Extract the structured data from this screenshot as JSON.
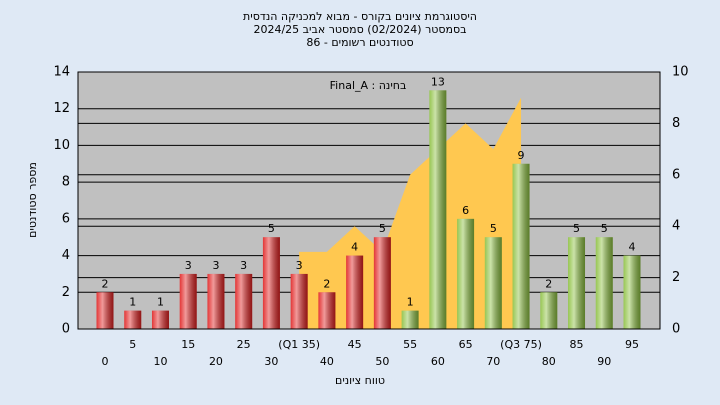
{
  "chart_data": {
    "type": "bar",
    "title": "היסטוגרמת ציונים בקורס - מבוא למכניקה הנדסית",
    "subtitle": "בסמסטר (02/2024) סמסטר אביב 2024/25",
    "subtitle2": "סטודנטים רשומים - 86",
    "annotation": "Final_A : בחינה",
    "ylabel": "מספר סטודנטים",
    "xlabel": "טווח ציונים",
    "categories": [
      "0",
      "5",
      "10",
      "15",
      "20",
      "25",
      "30",
      "(Q1 35)",
      "40",
      "45",
      "50",
      "55",
      "60",
      "65",
      "70",
      "(Q3 75)",
      "80",
      "85",
      "90",
      "95"
    ],
    "values": [
      2,
      1,
      1,
      3,
      3,
      3,
      5,
      3,
      2,
      4,
      5,
      1,
      13,
      6,
      5,
      9,
      2,
      5,
      5,
      4
    ],
    "colors": [
      "#e02020",
      "#e02020",
      "#e02020",
      "#e02020",
      "#e02020",
      "#e02020",
      "#e02020",
      "#e02020",
      "#e02020",
      "#e02020",
      "#e02020",
      "#8cc040",
      "#8cc040",
      "#8cc040",
      "#8cc040",
      "#8cc040",
      "#8cc040",
      "#8cc040",
      "#8cc040",
      "#8cc040"
    ],
    "area": {
      "color": "#ffc850",
      "axis": "y2",
      "values": [
        null,
        null,
        null,
        null,
        null,
        null,
        null,
        3,
        3,
        4,
        3,
        6,
        7,
        8,
        7,
        9,
        null,
        null,
        null,
        null
      ]
    },
    "ylim": [
      0,
      14
    ],
    "yticks": [
      0,
      2,
      4,
      6,
      8,
      10,
      12,
      14
    ],
    "y2lim": [
      0,
      10
    ],
    "y2ticks": [
      0,
      2,
      4,
      6,
      8,
      10
    ],
    "grid": true
  }
}
